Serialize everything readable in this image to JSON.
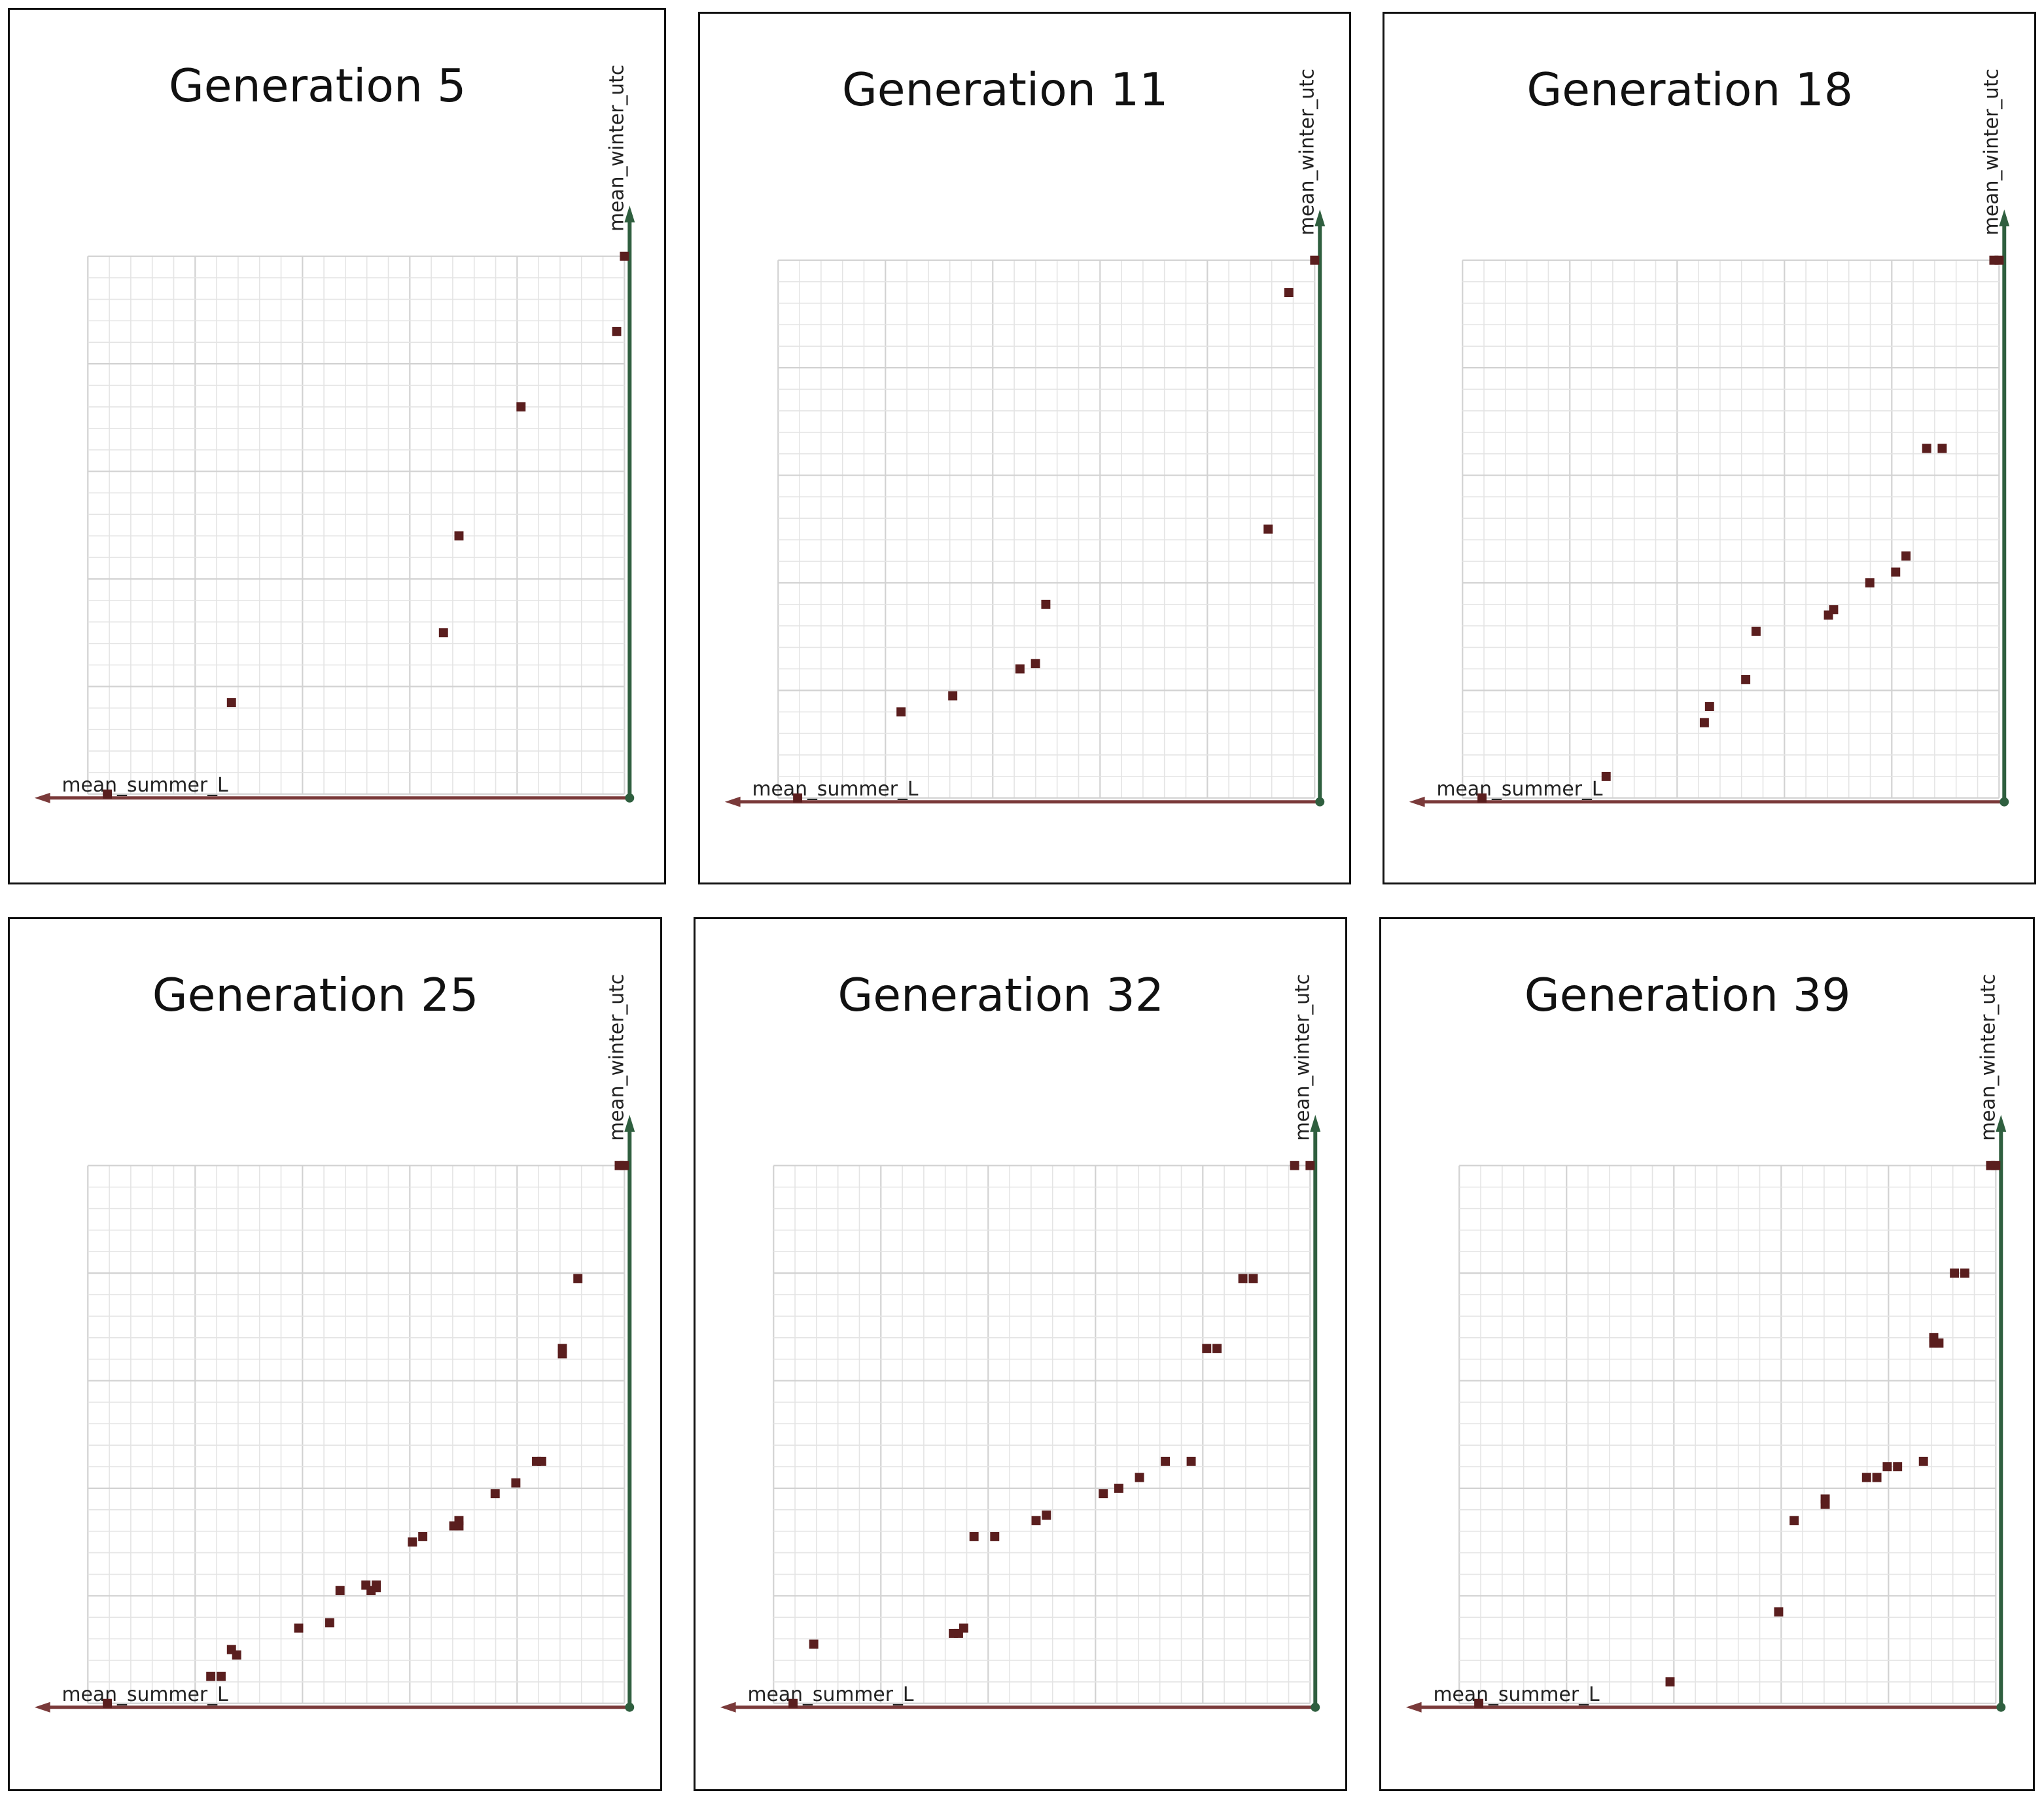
{
  "colors": {
    "x_axis": "#7a3a3a",
    "y_axis": "#2f5f3f",
    "point": "#5a1e1e",
    "origin": "#2f5f3f"
  },
  "chart_data": [
    {
      "type": "scatter",
      "title": "Generation 5",
      "xlabel": "mean_summer_L",
      "ylabel": "mean_winter_utc",
      "xlim": [
        0,
        1
      ],
      "ylim": [
        0,
        1
      ],
      "grid": true,
      "x_direction": "reversed",
      "points": [
        [
          0.0,
          1.0
        ],
        [
          0.015,
          0.86
        ],
        [
          0.2,
          0.72
        ],
        [
          0.32,
          0.48
        ],
        [
          0.35,
          0.3
        ],
        [
          0.76,
          0.17
        ],
        [
          1.0,
          0.0
        ]
      ]
    },
    {
      "type": "scatter",
      "title": "Generation 11",
      "xlabel": "mean_summer_L",
      "ylabel": "mean_winter_utc",
      "xlim": [
        0,
        1
      ],
      "ylim": [
        0,
        1
      ],
      "grid": true,
      "x_direction": "reversed",
      "points": [
        [
          0.0,
          1.0
        ],
        [
          0.05,
          0.94
        ],
        [
          0.09,
          0.5
        ],
        [
          0.52,
          0.36
        ],
        [
          0.54,
          0.25
        ],
        [
          0.57,
          0.24
        ],
        [
          0.7,
          0.19
        ],
        [
          0.8,
          0.16
        ],
        [
          1.0,
          0.0
        ]
      ]
    },
    {
      "type": "scatter",
      "title": "Generation 18",
      "xlabel": "mean_summer_L",
      "ylabel": "mean_winter_utc",
      "xlim": [
        0,
        1
      ],
      "ylim": [
        0,
        1
      ],
      "grid": true,
      "x_direction": "reversed",
      "points": [
        [
          0.0,
          1.0
        ],
        [
          0.01,
          1.0
        ],
        [
          0.11,
          0.65
        ],
        [
          0.14,
          0.65
        ],
        [
          0.18,
          0.45
        ],
        [
          0.2,
          0.42
        ],
        [
          0.25,
          0.4
        ],
        [
          0.32,
          0.35
        ],
        [
          0.33,
          0.34
        ],
        [
          0.47,
          0.31
        ],
        [
          0.49,
          0.22
        ],
        [
          0.56,
          0.17
        ],
        [
          0.57,
          0.14
        ],
        [
          0.76,
          0.04
        ],
        [
          1.0,
          0.0
        ]
      ]
    },
    {
      "type": "scatter",
      "title": "Generation 25",
      "xlabel": "mean_summer_L",
      "ylabel": "mean_winter_utc",
      "xlim": [
        0,
        1
      ],
      "ylim": [
        0,
        1
      ],
      "grid": true,
      "x_direction": "reversed",
      "points": [
        [
          0.0,
          1.0
        ],
        [
          0.01,
          1.0
        ],
        [
          0.09,
          0.79
        ],
        [
          0.12,
          0.66
        ],
        [
          0.12,
          0.65
        ],
        [
          0.16,
          0.45
        ],
        [
          0.17,
          0.45
        ],
        [
          0.21,
          0.41
        ],
        [
          0.25,
          0.39
        ],
        [
          0.32,
          0.34
        ],
        [
          0.32,
          0.33
        ],
        [
          0.33,
          0.33
        ],
        [
          0.39,
          0.31
        ],
        [
          0.41,
          0.3
        ],
        [
          0.48,
          0.22
        ],
        [
          0.48,
          0.215
        ],
        [
          0.49,
          0.21
        ],
        [
          0.5,
          0.22
        ],
        [
          0.55,
          0.21
        ],
        [
          0.57,
          0.15
        ],
        [
          0.63,
          0.14
        ],
        [
          0.76,
          0.1
        ],
        [
          0.75,
          0.09
        ],
        [
          0.78,
          0.05
        ],
        [
          0.8,
          0.05
        ],
        [
          1.0,
          0.0
        ]
      ]
    },
    {
      "type": "scatter",
      "title": "Generation 32",
      "xlabel": "mean_summer_L",
      "ylabel": "mean_winter_utc",
      "xlim": [
        0,
        1
      ],
      "ylim": [
        0,
        1
      ],
      "grid": true,
      "x_direction": "reversed",
      "points": [
        [
          0.0,
          1.0
        ],
        [
          0.03,
          1.0
        ],
        [
          0.11,
          0.79
        ],
        [
          0.13,
          0.79
        ],
        [
          0.18,
          0.66
        ],
        [
          0.2,
          0.66
        ],
        [
          0.23,
          0.45
        ],
        [
          0.28,
          0.45
        ],
        [
          0.33,
          0.42
        ],
        [
          0.37,
          0.4
        ],
        [
          0.4,
          0.39
        ],
        [
          0.51,
          0.35
        ],
        [
          0.53,
          0.34
        ],
        [
          0.61,
          0.31
        ],
        [
          0.65,
          0.31
        ],
        [
          0.67,
          0.14
        ],
        [
          0.68,
          0.13
        ],
        [
          0.69,
          0.13
        ],
        [
          0.96,
          0.11
        ],
        [
          1.0,
          0.0
        ]
      ]
    },
    {
      "type": "scatter",
      "title": "Generation 39",
      "xlabel": "mean_summer_L",
      "ylabel": "mean_winter_utc",
      "xlim": [
        0,
        1
      ],
      "ylim": [
        0,
        1
      ],
      "grid": true,
      "x_direction": "reversed",
      "points": [
        [
          0.0,
          1.0
        ],
        [
          0.01,
          1.0
        ],
        [
          0.06,
          0.8
        ],
        [
          0.08,
          0.8
        ],
        [
          0.11,
          0.67
        ],
        [
          0.12,
          0.67
        ],
        [
          0.12,
          0.68
        ],
        [
          0.14,
          0.45
        ],
        [
          0.19,
          0.44
        ],
        [
          0.21,
          0.44
        ],
        [
          0.23,
          0.42
        ],
        [
          0.25,
          0.42
        ],
        [
          0.33,
          0.38
        ],
        [
          0.33,
          0.37
        ],
        [
          0.39,
          0.34
        ],
        [
          0.42,
          0.17
        ],
        [
          0.63,
          0.04
        ],
        [
          1.0,
          0.0
        ]
      ]
    }
  ]
}
